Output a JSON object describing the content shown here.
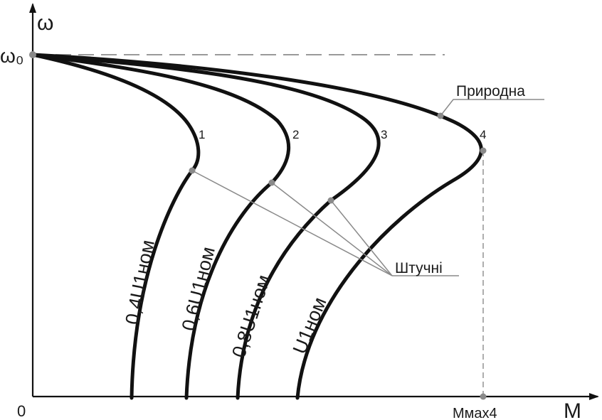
{
  "axes": {
    "y_label": "ω",
    "x_label": "M",
    "origin_label": "0",
    "omega0_label": "ω₀",
    "mmax_label": "Mмах4"
  },
  "curves": [
    {
      "number": "1",
      "label": "0,4U1ном"
    },
    {
      "number": "2",
      "label": "0,6U1ном"
    },
    {
      "number": "3",
      "label": "0,8U1ном"
    },
    {
      "number": "4",
      "label": "U1ном"
    }
  ],
  "callouts": {
    "natural": "Природна",
    "artificial": "Штучні"
  },
  "colors": {
    "curve": "#111111",
    "axis": "#111111",
    "leader": "#8a8a8a",
    "marker": "#8a8a8a",
    "dashed": "#9a9a9a"
  }
}
